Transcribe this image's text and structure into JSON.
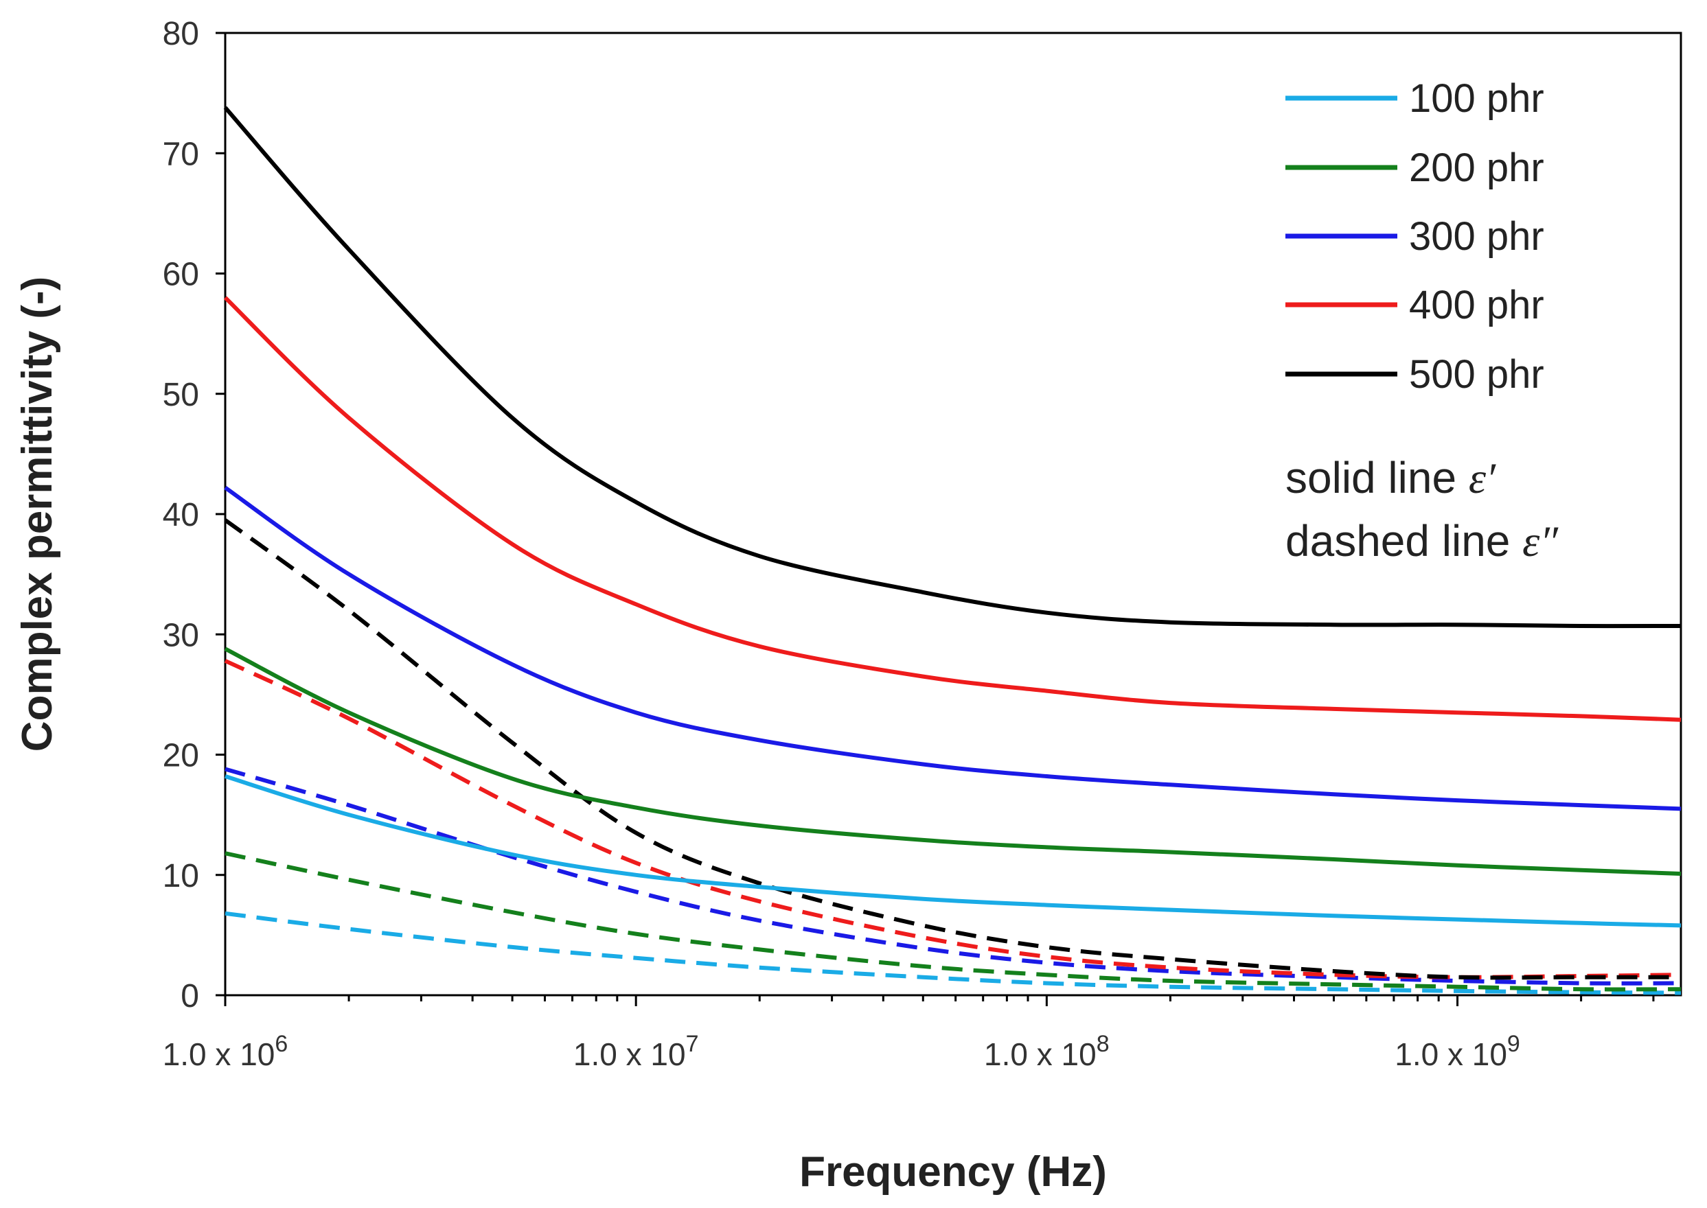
{
  "chart_data": {
    "type": "line",
    "title": "",
    "xlabel": "Frequency (Hz)",
    "ylabel": "Complex permittivity (-)",
    "xscale": "log",
    "xlim": [
      1000000,
      3500000000
    ],
    "ylim": [
      0,
      80
    ],
    "yticks": [
      "0",
      "10",
      "20",
      "30",
      "40",
      "50",
      "60",
      "70",
      "80"
    ],
    "xticks": [
      {
        "value": 1000000,
        "base": "1.0 x 10",
        "exp": "6"
      },
      {
        "value": 10000000,
        "base": "1.0 x 10",
        "exp": "7"
      },
      {
        "value": 100000000,
        "base": "1.0 x 10",
        "exp": "8"
      },
      {
        "value": 1000000000,
        "base": "1.0 x 10",
        "exp": "9"
      }
    ],
    "grid": false,
    "legend_position": "top-right",
    "note": {
      "line1_text": "solid line ",
      "line1_symbol": "ε′",
      "line2_text": "dashed line ",
      "line2_symbol": "ε″"
    },
    "x": [
      1000000,
      2000000,
      5000000,
      10000000,
      20000000,
      50000000,
      100000000,
      200000000,
      500000000,
      1000000000,
      2000000000,
      3500000000
    ],
    "series": [
      {
        "name": "100 phr",
        "color": "#1aabe6",
        "style": "solid",
        "quantity": "real",
        "values": [
          18.2,
          15.0,
          11.7,
          10.0,
          9.0,
          8.0,
          7.5,
          7.1,
          6.6,
          6.3,
          6.0,
          5.8
        ]
      },
      {
        "name": "200 phr",
        "color": "#14801c",
        "style": "solid",
        "quantity": "real",
        "values": [
          28.8,
          23.5,
          18.0,
          15.6,
          14.1,
          12.9,
          12.3,
          11.9,
          11.3,
          10.8,
          10.4,
          10.1
        ]
      },
      {
        "name": "300 phr",
        "color": "#1a1ae6",
        "style": "solid",
        "quantity": "real",
        "values": [
          42.2,
          35.0,
          27.5,
          23.5,
          21.2,
          19.2,
          18.2,
          17.5,
          16.7,
          16.2,
          15.8,
          15.5
        ]
      },
      {
        "name": "400 phr",
        "color": "#ee1c1c",
        "style": "solid",
        "quantity": "real",
        "values": [
          58.0,
          48.0,
          37.5,
          32.5,
          29.0,
          26.5,
          25.3,
          24.3,
          23.8,
          23.5,
          23.2,
          22.9
        ]
      },
      {
        "name": "500 phr",
        "color": "#000000",
        "style": "solid",
        "quantity": "real",
        "values": [
          73.8,
          62.0,
          48.0,
          41.0,
          36.5,
          33.5,
          31.8,
          31.0,
          30.8,
          30.8,
          30.7,
          30.7
        ]
      },
      {
        "name": "100 phr",
        "color": "#1aabe6",
        "style": "dashed",
        "quantity": "imaginary",
        "values": [
          6.8,
          5.5,
          4.0,
          3.1,
          2.3,
          1.5,
          1.0,
          0.7,
          0.5,
          0.35,
          0.25,
          0.2
        ]
      },
      {
        "name": "200 phr",
        "color": "#14801c",
        "style": "dashed",
        "quantity": "imaginary",
        "values": [
          11.8,
          9.6,
          6.9,
          5.1,
          3.8,
          2.4,
          1.7,
          1.2,
          0.9,
          0.7,
          0.5,
          0.5
        ]
      },
      {
        "name": "300 phr",
        "color": "#1a1ae6",
        "style": "dashed",
        "quantity": "imaginary",
        "values": [
          18.8,
          15.8,
          11.5,
          8.6,
          6.2,
          3.9,
          2.7,
          2.0,
          1.5,
          1.2,
          1.0,
          1.0
        ]
      },
      {
        "name": "400 phr",
        "color": "#ee1c1c",
        "style": "dashed",
        "quantity": "imaginary",
        "values": [
          27.8,
          23.0,
          15.8,
          11.0,
          7.8,
          4.8,
          3.2,
          2.3,
          1.7,
          1.5,
          1.6,
          1.7
        ]
      },
      {
        "name": "500 phr",
        "color": "#000000",
        "style": "dashed",
        "quantity": "imaginary",
        "values": [
          39.5,
          32.0,
          21.0,
          13.5,
          9.3,
          5.8,
          4.0,
          3.0,
          2.0,
          1.5,
          1.5,
          1.5
        ]
      }
    ]
  }
}
